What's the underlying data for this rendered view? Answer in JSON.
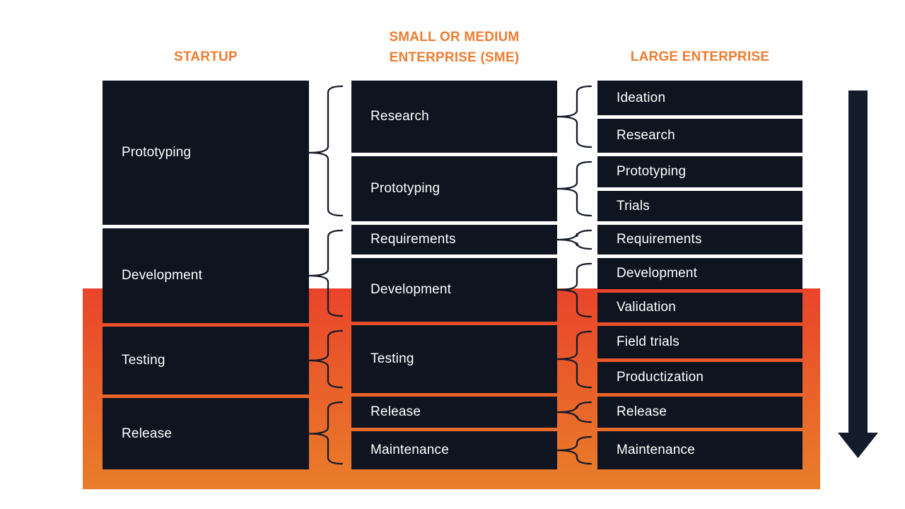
{
  "diagram_title": "",
  "columns": {
    "startup": {
      "title": "STARTUP",
      "phases": [
        "Prototyping",
        "Development",
        "Testing",
        "Release"
      ]
    },
    "sme": {
      "title_line1": "SMALL OR MEDIUM",
      "title_line2": "ENTERPRISE (SME)",
      "phases": [
        "Research",
        "Prototyping",
        "Requirements",
        "Development",
        "Testing",
        "Release",
        "Maintenance"
      ]
    },
    "large": {
      "title": "LARGE ENTERPRISE",
      "phases": [
        "Ideation",
        "Research",
        "Prototyping",
        "Trials",
        "Requirements",
        "Development",
        "Validation",
        "Field trials",
        "Productization",
        "Release",
        "Maintenance"
      ]
    }
  },
  "mappings": {
    "startup_to_sme": [
      {
        "from": "Prototyping",
        "to": [
          "Research",
          "Prototyping"
        ]
      },
      {
        "from": "Development",
        "to": [
          "Requirements",
          "Development"
        ]
      },
      {
        "from": "Testing",
        "to": [
          "Testing"
        ]
      },
      {
        "from": "Release",
        "to": [
          "Release",
          "Maintenance"
        ]
      }
    ],
    "sme_to_large": [
      {
        "from": "Research",
        "to": [
          "Ideation",
          "Research"
        ]
      },
      {
        "from": "Prototyping",
        "to": [
          "Prototyping",
          "Trials"
        ]
      },
      {
        "from": "Requirements",
        "to": [
          "Requirements"
        ]
      },
      {
        "from": "Development",
        "to": [
          "Development",
          "Validation"
        ]
      },
      {
        "from": "Testing",
        "to": [
          "Field trials",
          "Productization"
        ]
      },
      {
        "from": "Release",
        "to": [
          "Release"
        ]
      },
      {
        "from": "Maintenance",
        "to": [
          "Maintenance"
        ]
      }
    ]
  },
  "arrow": {
    "direction": "down",
    "meaning": "process-progression"
  },
  "colors": {
    "accent_orange": "#ED7D31",
    "band_gradient_top": "#E9442B",
    "band_gradient_bottom": "#E97E2A",
    "box_dark": "#0E1520",
    "divider_white": "#FFFFFF",
    "ink_dark": "#141B2A",
    "text_white": "#FFFFFF"
  }
}
